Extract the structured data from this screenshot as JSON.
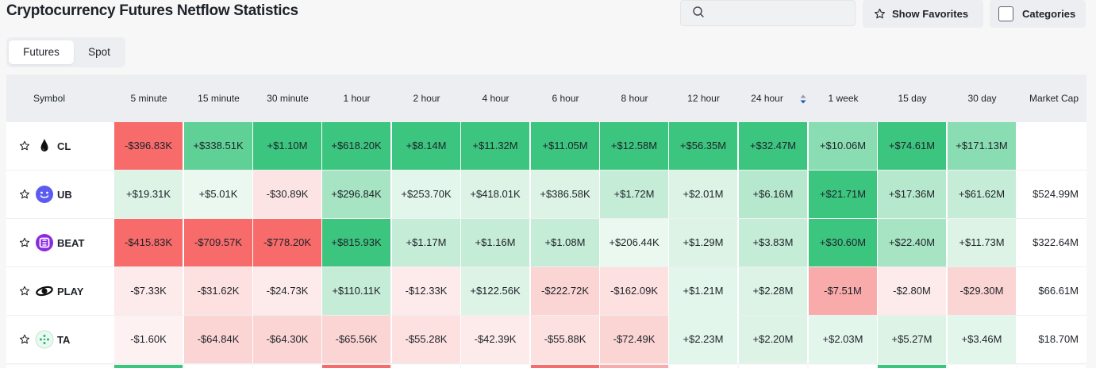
{
  "title": "Cryptocurrency Futures Netflow Statistics",
  "search": {
    "placeholder": ""
  },
  "buttons": {
    "favorites": "Show Favorites",
    "categories": "Categories"
  },
  "tabs": [
    {
      "label": "Futures",
      "active": true
    },
    {
      "label": "Spot",
      "active": false
    }
  ],
  "headers": [
    "Symbol",
    "5 minute",
    "15 minute",
    "30 minute",
    "1 hour",
    "2 hour",
    "4 hour",
    "6 hour",
    "8 hour",
    "12 hour",
    "24 hour",
    "1 week",
    "15 day",
    "30 day",
    "Market Cap"
  ],
  "rows": [
    {
      "symbol": "CL",
      "logo": "oil-drop-icon",
      "values": [
        "-$396.83K",
        "+$338.51K",
        "+$1.10M",
        "+$618.20K",
        "+$8.14M",
        "+$11.32M",
        "+$11.05M",
        "+$12.58M",
        "+$56.35M",
        "+$32.47M",
        "+$10.06M",
        "+$74.61M",
        "+$171.13M"
      ],
      "colors": [
        "#f76b6b",
        "#5fd197",
        "#3cc57f",
        "#3cc57f",
        "#3cc57f",
        "#3cc57f",
        "#3cc57f",
        "#3cc57f",
        "#3cc57f",
        "#3cc57f",
        "#8adcb2",
        "#3cc57f",
        "#8adcb2"
      ],
      "market_cap": ""
    },
    {
      "symbol": "UB",
      "logo": "smiley-icon",
      "values": [
        "+$19.31K",
        "+$5.01K",
        "-$30.89K",
        "+$296.84K",
        "+$253.70K",
        "+$418.01K",
        "+$386.58K",
        "+$1.72M",
        "+$2.01M",
        "+$6.16M",
        "+$21.71M",
        "+$17.36M",
        "+$61.62M"
      ],
      "colors": [
        "#dcf3e6",
        "#eaf8f0",
        "#fde4e4",
        "#a6e4c3",
        "#e3f6ec",
        "#dcf3e6",
        "#dcf3e6",
        "#c5ecd7",
        "#dcf3e6",
        "#b6e8cd",
        "#3cc57f",
        "#b6e8cd",
        "#c5ecd7"
      ],
      "market_cap": "$524.99M"
    },
    {
      "symbol": "BEAT",
      "logo": "beat-icon",
      "values": [
        "-$415.83K",
        "-$709.57K",
        "-$778.20K",
        "+$815.93K",
        "+$1.17M",
        "+$1.16M",
        "+$1.08M",
        "+$206.44K",
        "+$1.29M",
        "+$3.83M",
        "+$30.60M",
        "+$22.40M",
        "+$11.73M"
      ],
      "colors": [
        "#f76b6b",
        "#f76b6b",
        "#f76b6b",
        "#3cc57f",
        "#c5ecd7",
        "#c5ecd7",
        "#c5ecd7",
        "#eaf8f0",
        "#dcf3e6",
        "#c5ecd7",
        "#3cc57f",
        "#a6e4c3",
        "#dcf3e6"
      ],
      "market_cap": "$322.64M"
    },
    {
      "symbol": "PLAY",
      "logo": "play-icon",
      "values": [
        "-$7.33K",
        "-$31.62K",
        "-$24.73K",
        "+$110.11K",
        "-$12.33K",
        "+$122.56K",
        "-$222.72K",
        "-$162.09K",
        "+$1.21M",
        "+$2.28M",
        "-$7.51M",
        "-$2.80M",
        "-$29.30M"
      ],
      "colors": [
        "#fdeaea",
        "#fde0e0",
        "#fdeaea",
        "#c5ecd7",
        "#fdeaea",
        "#dcf3e6",
        "#fbd4d4",
        "#fde0e0",
        "#e3f6ec",
        "#dcf3e6",
        "#f9aaaa",
        "#fdeaea",
        "#fbd4d4"
      ],
      "market_cap": "$66.61M"
    },
    {
      "symbol": "TA",
      "logo": "ta-icon",
      "values": [
        "-$1.60K",
        "-$64.84K",
        "-$64.30K",
        "-$65.56K",
        "-$55.28K",
        "-$42.39K",
        "-$55.88K",
        "-$72.49K",
        "+$2.23M",
        "+$2.20M",
        "+$2.03M",
        "+$5.27M",
        "+$3.46M"
      ],
      "colors": [
        "#fdf1f1",
        "#fbd4d4",
        "#fbd4d4",
        "#fbd4d4",
        "#fde0e0",
        "#fdeaea",
        "#fde0e0",
        "#fbd4d4",
        "#e3f6ec",
        "#dcf3e6",
        "#e3f6ec",
        "#dcf3e6",
        "#e3f6ec"
      ],
      "market_cap": "$18.70M"
    }
  ],
  "sort_column": "24 hour"
}
